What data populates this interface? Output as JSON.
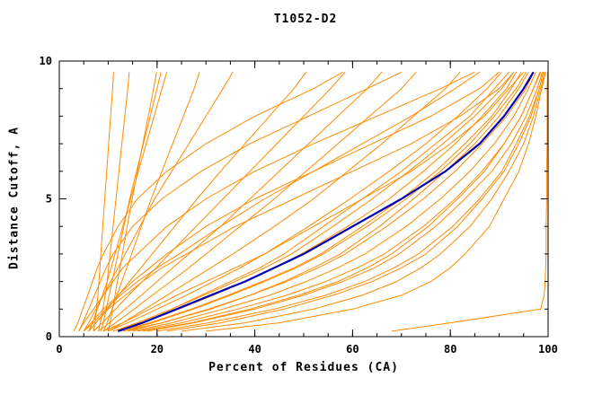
{
  "chart_data": {
    "type": "line",
    "title": "T1052-D2",
    "xlabel": "Percent of Residues (CA)",
    "ylabel": "Distance Cutoff, A",
    "xlim": [
      0,
      100
    ],
    "ylim": [
      0,
      10
    ],
    "xticks": [
      0,
      20,
      40,
      60,
      80,
      100
    ],
    "x_minor_step": 5,
    "yticks": [
      0,
      5,
      10
    ],
    "y_minor_step": 1,
    "grid": false,
    "legend_position": "none",
    "colors": {
      "model_line": "#FF8C00",
      "highlight_line": "#0000B0",
      "axis": "#000000",
      "background": "#FFFFFF"
    },
    "y_levels": [
      0.2,
      0.5,
      1,
      1.5,
      2,
      2.5,
      3,
      4,
      5,
      6,
      7,
      8,
      9,
      9.6
    ],
    "series": {
      "models_x": [
        [
          7,
          7.3,
          7.6,
          7.9,
          8.1,
          8.3,
          8.5,
          8.9,
          9.3,
          9.7,
          10.1,
          10.5,
          10.9,
          11.1
        ],
        [
          8,
          8.4,
          8.9,
          9.4,
          9.8,
          10.1,
          10.4,
          11,
          11.6,
          12.2,
          12.8,
          13.4,
          14,
          14.3
        ],
        [
          6,
          6.8,
          7.8,
          8.8,
          9.8,
          10.6,
          11.4,
          13,
          14.6,
          16.2,
          17.8,
          19.4,
          21,
          22
        ],
        [
          9,
          9.8,
          10.8,
          11.8,
          12.8,
          13.8,
          14.8,
          16.8,
          18.8,
          21,
          23.2,
          25.4,
          27.6,
          28.7
        ],
        [
          5,
          6,
          7.5,
          9,
          10.5,
          12,
          13.5,
          16.5,
          19.5,
          23,
          26.5,
          30,
          33.5,
          35.5
        ],
        [
          6,
          7.5,
          9.8,
          12.1,
          14.4,
          16.7,
          19,
          23.6,
          28.2,
          33,
          38,
          43,
          48,
          50.5
        ],
        [
          7,
          8.8,
          11.5,
          14.2,
          17,
          19.8,
          22.5,
          28,
          33.5,
          39,
          44.5,
          50,
          55.5,
          58.5
        ],
        [
          8,
          10.2,
          13.5,
          16.8,
          20,
          23.2,
          26.5,
          33,
          39,
          45,
          51,
          57,
          63,
          66
        ],
        [
          9,
          11.5,
          15.3,
          19,
          22.8,
          26.5,
          30,
          37,
          44,
          50.5,
          57,
          63.5,
          70,
          73
        ],
        [
          10,
          13,
          17.5,
          22,
          26.5,
          31,
          35.5,
          44,
          52,
          59,
          66,
          72.5,
          79,
          82
        ],
        [
          10,
          14,
          20,
          26,
          31.5,
          37,
          42,
          51,
          59.5,
          67.5,
          75,
          81.5,
          87.5,
          90.5
        ],
        [
          12,
          17,
          24.5,
          31.5,
          38,
          44,
          49.5,
          59,
          67.5,
          74.5,
          81,
          86.5,
          91.5,
          93.5
        ],
        [
          13,
          19,
          27.5,
          35,
          42,
          48.5,
          54,
          63,
          71,
          78,
          84,
          89,
          93.5,
          95.5
        ],
        [
          14,
          21,
          30.5,
          39,
          46.5,
          53,
          58.5,
          67,
          74.5,
          81,
          86.5,
          91.5,
          95.5,
          97
        ],
        [
          15,
          23,
          33.5,
          43,
          50.5,
          57,
          62.5,
          71,
          78,
          84,
          89,
          93,
          96,
          97.5
        ],
        [
          16,
          25,
          36.5,
          46.5,
          54.5,
          61,
          66.5,
          74.5,
          81,
          86.5,
          91,
          94.5,
          97,
          98.3
        ],
        [
          18,
          27.5,
          40,
          50,
          58,
          64.5,
          69.5,
          77,
          83,
          88.5,
          92.5,
          95.5,
          97.8,
          98.8
        ],
        [
          20,
          30.5,
          44,
          54.5,
          62.5,
          68.5,
          73.5,
          80.5,
          86,
          90.5,
          93.5,
          96.2,
          98.2,
          99
        ],
        [
          11,
          16,
          23,
          29.5,
          36,
          42,
          47.5,
          56,
          64,
          71.5,
          78.5,
          85,
          90.5,
          93
        ],
        [
          12,
          18.5,
          27,
          34.5,
          41.5,
          48,
          53.5,
          62,
          70,
          77,
          83,
          88.5,
          92.5,
          94.5
        ],
        [
          4,
          5,
          7,
          9,
          11,
          13,
          16,
          22,
          30,
          40,
          52,
          65,
          78,
          85
        ],
        [
          5,
          6.5,
          9,
          12,
          15,
          18.5,
          22,
          30,
          40,
          52,
          64,
          76,
          86,
          90
        ],
        [
          6,
          7.5,
          10,
          13.5,
          17,
          21,
          26,
          36,
          48,
          60,
          72,
          82,
          90,
          93
        ],
        [
          4,
          4.8,
          6,
          7.2,
          8.4,
          9.6,
          11,
          15,
          21,
          29,
          39,
          51,
          63,
          70
        ],
        [
          5,
          7,
          9.5,
          12.5,
          16,
          20,
          24.5,
          33,
          42,
          52,
          62,
          72,
          81,
          86
        ],
        [
          3,
          3.8,
          4.8,
          5.8,
          6.8,
          7.8,
          9,
          12,
          16,
          22,
          30,
          40,
          52,
          58
        ],
        [
          22,
          33,
          46,
          56,
          64,
          70,
          75,
          81.5,
          86.5,
          91,
          94,
          96.5,
          98.2,
          99
        ],
        [
          9,
          13,
          18.5,
          24,
          30,
          36,
          42,
          52,
          62,
          72,
          80,
          87,
          92,
          95
        ],
        [
          17,
          27,
          39,
          49,
          57,
          63,
          68,
          75.5,
          81.5,
          87,
          91,
          94.5,
          97,
          98.5
        ],
        [
          13,
          21,
          31,
          39,
          46,
          52,
          57.5,
          65.5,
          72.5,
          79,
          85,
          90,
          94,
          96
        ],
        [
          11,
          16,
          23,
          29,
          35,
          41,
          46,
          54,
          62,
          70,
          77,
          84,
          89,
          92
        ],
        [
          25,
          38,
          52,
          62,
          69,
          74,
          78,
          84,
          88.5,
          92,
          95,
          97,
          98.5,
          99.3
        ],
        [
          30,
          45,
          60,
          70,
          76,
          80,
          83,
          88,
          91,
          94,
          96,
          97.5,
          98.7,
          99.5
        ],
        [
          8.5,
          9,
          9.6,
          10.2,
          10.8,
          11.4,
          12,
          13.2,
          14.4,
          15.8,
          17.2,
          18.6,
          20,
          20.8
        ],
        [
          10,
          10.4,
          10.9,
          11.4,
          11.9,
          12.4,
          12.9,
          13.9,
          14.9,
          16,
          17.1,
          18.2,
          19.3,
          19.9
        ],
        [
          68,
          80,
          98.5,
          99.2,
          99.4,
          99.5,
          99.6,
          99.6,
          99.7,
          99.7,
          99.8,
          99.8,
          99.8,
          99.9
        ]
      ],
      "highlight_x": [
        12,
        17,
        24,
        31,
        38,
        44,
        50,
        60,
        70,
        79,
        86,
        91,
        95,
        97
      ],
      "highlight_name": "best-model-highlight"
    }
  }
}
